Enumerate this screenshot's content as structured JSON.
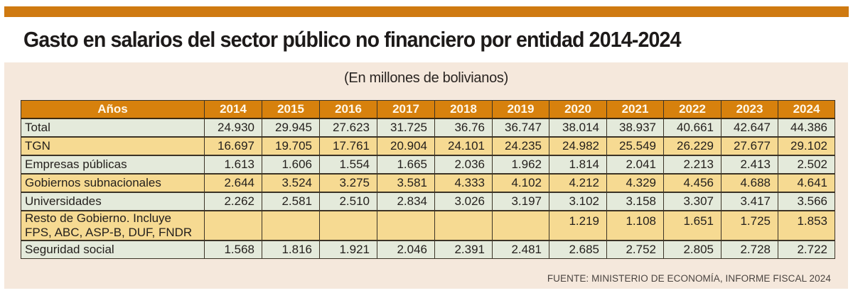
{
  "title": "Gasto en salarios  del sector público no financiero por entidad 2014-2024",
  "subtitle": "(En millones de bolivianos)",
  "colors": {
    "top_bar": "#cf7a11",
    "header_bg": "#d7810d",
    "panel_bg": "#f5e8dc",
    "row_green": "#e4eadb",
    "row_yellow": "#f6da92"
  },
  "table": {
    "header_label": "Años",
    "years": [
      "2014",
      "2015",
      "2016",
      "2017",
      "2018",
      "2019",
      "2020",
      "2021",
      "2022",
      "2023",
      "2024"
    ],
    "rows": [
      {
        "label": "Total",
        "values": [
          "24.930",
          "29.945",
          "27.623",
          "31.725",
          "36.76",
          "36.747",
          "38.014",
          "38.937",
          "40.661",
          "42.647",
          "44.386"
        ]
      },
      {
        "label": "TGN",
        "values": [
          "16.697",
          "19.705",
          "17.761",
          "20.904",
          "24.101",
          "24.235",
          "24.982",
          "25.549",
          "26.229",
          "27.677",
          "29.102"
        ]
      },
      {
        "label": "Empresas públicas",
        "values": [
          "1.613",
          "1.606",
          "1.554",
          "1.665",
          "2.036",
          "1.962",
          "1.814",
          "2.041",
          "2.213",
          "2.413",
          "2.502"
        ]
      },
      {
        "label": "Gobiernos subnacionales",
        "values": [
          "2.644",
          "3.524",
          "3.275",
          "3.581",
          "4.333",
          "4.102",
          "4.212",
          "4.329",
          "4.456",
          "4.688",
          "4.641"
        ]
      },
      {
        "label": "Universidades",
        "values": [
          "2.262",
          "2.581",
          "2.510",
          "2.834",
          "3.026",
          "3.197",
          "3.102",
          "3.158",
          "3.307",
          "3.417",
          "3.566"
        ]
      },
      {
        "label": "Resto de Gobierno. Incluye",
        "label_line2": "FPS, ABC, ASP-B, DUF, FNDR",
        "values": [
          "",
          "",
          "",
          "",
          "",
          "",
          "1.219",
          "1.108",
          "1.651",
          "1.725",
          "1.853"
        ]
      },
      {
        "label": "Seguridad social",
        "values": [
          "1.568",
          "1.816",
          "1.921",
          "2.046",
          "2.391",
          "2.481",
          "2.685",
          "2.752",
          "2.805",
          "2.728",
          "2.722"
        ]
      }
    ]
  },
  "source": "FUENTE: MINISTERIO DE ECONOMÍA, INFORME FISCAL 2024"
}
